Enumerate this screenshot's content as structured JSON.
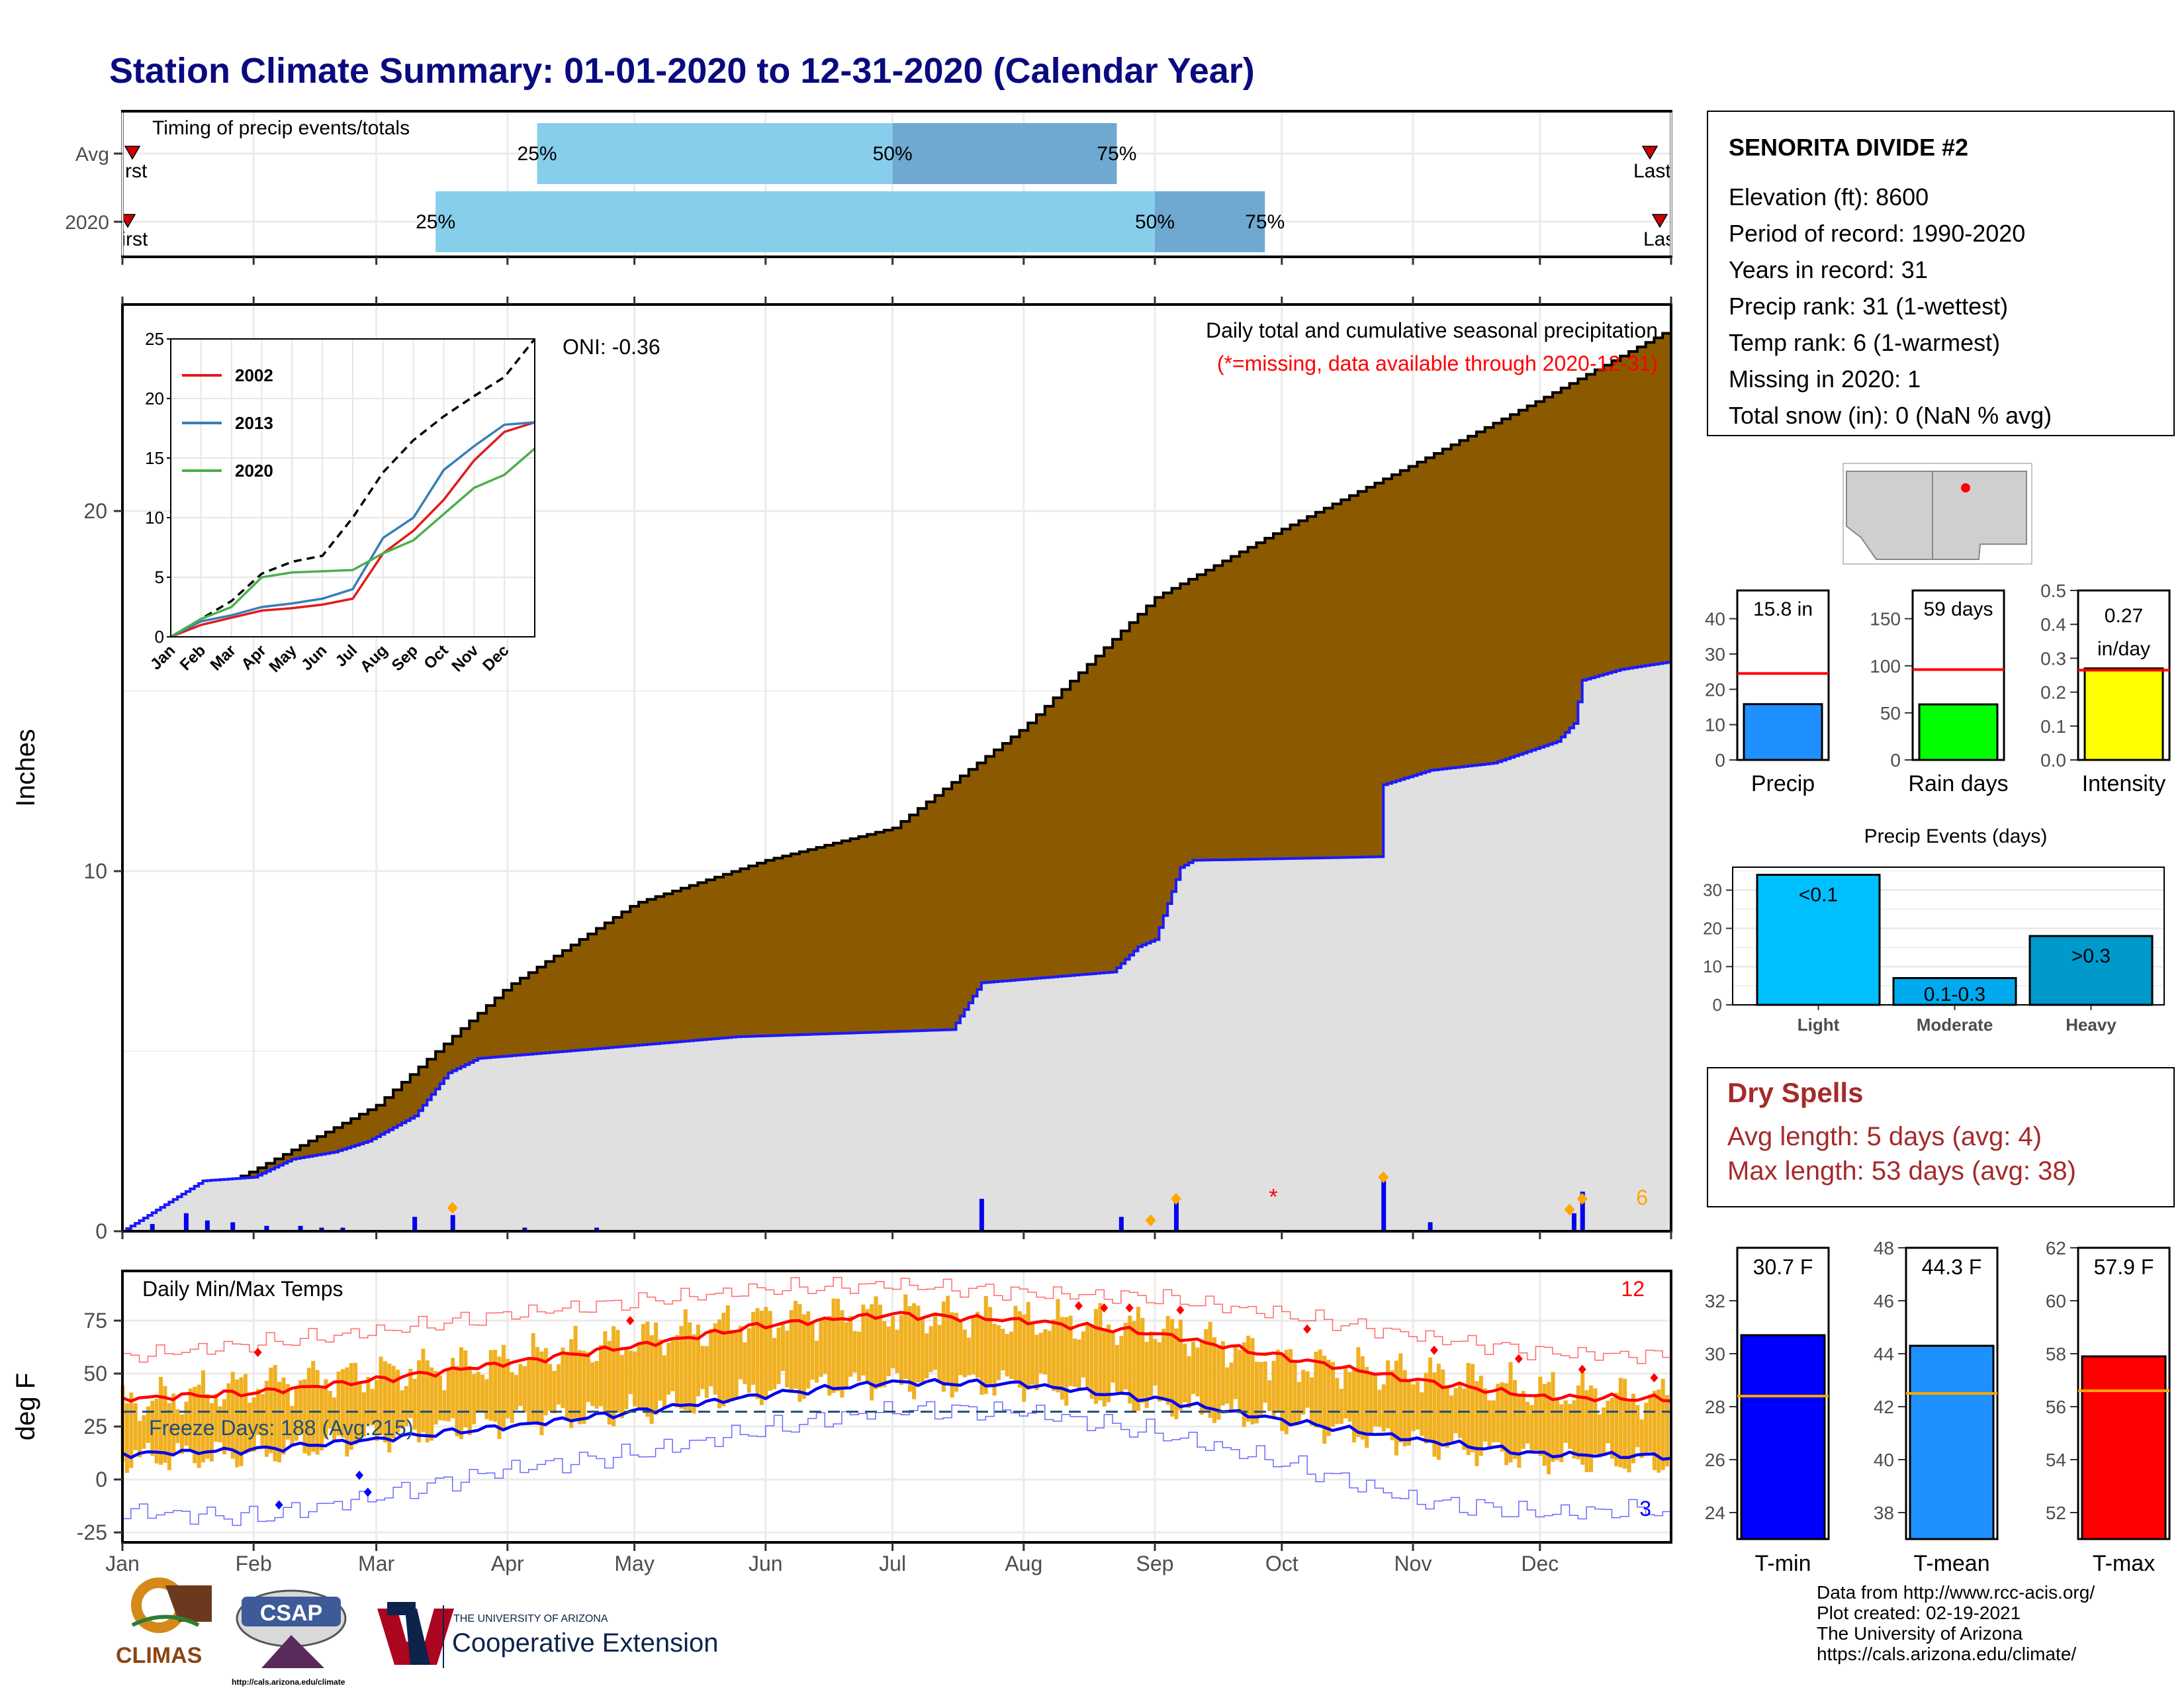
{
  "title": "Station Climate Summary: 01-01-2020 to 12-31-2020 (Calendar Year)",
  "colors": {
    "title": "#0a0a80",
    "light_blue": "#87ceeb",
    "mid_blue": "#6fa8d0",
    "brown": "#8b5a00",
    "grey_fill": "#e0e0e0",
    "blue_line": "#1a1aff",
    "orange": "#ffa500",
    "red": "#ff0000",
    "gold": "#f0b020",
    "dark_red": "#a52a2a"
  },
  "station": {
    "name": "SENORITA DIVIDE #2",
    "lines": [
      "Elevation (ft): 8600",
      "Period of record: 1990-2020",
      "Years in record: 31",
      "Precip rank: 31 (1-wettest)",
      "Temp rank: 6 (1-warmest)",
      "Missing in 2020: 1",
      "Total snow (in): 0 (NaN % avg)"
    ]
  },
  "timing": {
    "label": "Timing of precip events/totals",
    "rows": [
      {
        "name": "Avg",
        "q25": "Apr 8",
        "q50": "Jul 1",
        "q75": "Aug 23",
        "first": "first",
        "last": "Last"
      },
      {
        "name": "2020",
        "q25": "Mar 15",
        "q50": "Sep 1",
        "q75": "Sep 27",
        "first": "first",
        "last": "Last"
      }
    ],
    "pct_labels": [
      "25%",
      "50%",
      "75%"
    ]
  },
  "precip_panel": {
    "ylabel": "Inches",
    "yticks": [
      0,
      10,
      20
    ],
    "oni": "ONI: -0.36",
    "title": "Daily total and cumulative seasonal precipitation",
    "note": "(*=missing, data available through 2020-12-31)",
    "corner_count": "6",
    "normal_cumulative": [
      {
        "day": "2020-01-01",
        "v": 0
      },
      {
        "day": "2020-02-01",
        "v": 1.7
      },
      {
        "day": "2020-03-01",
        "v": 3.5
      },
      {
        "day": "2020-04-01",
        "v": 6.8
      },
      {
        "day": "2020-05-01",
        "v": 9.1
      },
      {
        "day": "2020-06-01",
        "v": 10.3
      },
      {
        "day": "2020-07-01",
        "v": 11.2
      },
      {
        "day": "2020-08-01",
        "v": 14.0
      },
      {
        "day": "2020-09-01",
        "v": 17.6
      },
      {
        "day": "2020-10-01",
        "v": 19.5
      },
      {
        "day": "2020-11-01",
        "v": 21.3
      },
      {
        "day": "2020-12-01",
        "v": 23.1
      },
      {
        "day": "2020-12-31",
        "v": 25.0
      }
    ],
    "cumulative_2020": [
      {
        "day": "2020-01-01",
        "v": 0
      },
      {
        "day": "2020-01-20",
        "v": 1.4
      },
      {
        "day": "2020-02-01",
        "v": 1.5
      },
      {
        "day": "2020-02-10",
        "v": 2.0
      },
      {
        "day": "2020-02-20",
        "v": 2.2
      },
      {
        "day": "2020-02-28",
        "v": 2.5
      },
      {
        "day": "2020-03-10",
        "v": 3.2
      },
      {
        "day": "2020-03-18",
        "v": 4.4
      },
      {
        "day": "2020-03-25",
        "v": 4.8
      },
      {
        "day": "2020-04-25",
        "v": 5.1
      },
      {
        "day": "2020-05-25",
        "v": 5.4
      },
      {
        "day": "2020-07-15",
        "v": 5.6
      },
      {
        "day": "2020-07-22",
        "v": 6.9
      },
      {
        "day": "2020-08-22",
        "v": 7.2
      },
      {
        "day": "2020-08-28",
        "v": 7.9
      },
      {
        "day": "2020-09-01",
        "v": 8.1
      },
      {
        "day": "2020-09-07",
        "v": 10.1
      },
      {
        "day": "2020-09-10",
        "v": 10.3
      },
      {
        "day": "2020-10-24",
        "v": 10.4
      },
      {
        "day": "2020-10-25",
        "v": 12.4
      },
      {
        "day": "2020-11-05",
        "v": 12.8
      },
      {
        "day": "2020-11-20",
        "v": 13.0
      },
      {
        "day": "2020-12-05",
        "v": 13.6
      },
      {
        "day": "2020-12-09",
        "v": 14.1
      },
      {
        "day": "2020-12-11",
        "v": 15.3
      },
      {
        "day": "2020-12-20",
        "v": 15.6
      },
      {
        "day": "2020-12-31",
        "v": 15.8
      }
    ],
    "daily_bars": [
      {
        "day": "2020-01-08",
        "v": 0.2
      },
      {
        "day": "2020-01-16",
        "v": 0.5
      },
      {
        "day": "2020-01-21",
        "v": 0.3
      },
      {
        "day": "2020-01-27",
        "v": 0.25
      },
      {
        "day": "2020-02-04",
        "v": 0.15
      },
      {
        "day": "2020-02-12",
        "v": 0.15
      },
      {
        "day": "2020-02-17",
        "v": 0.1
      },
      {
        "day": "2020-02-22",
        "v": 0.1
      },
      {
        "day": "2020-03-10",
        "v": 0.4
      },
      {
        "day": "2020-03-19",
        "v": 0.45
      },
      {
        "day": "2020-04-05",
        "v": 0.1
      },
      {
        "day": "2020-04-22",
        "v": 0.1
      },
      {
        "day": "2020-07-22",
        "v": 0.9
      },
      {
        "day": "2020-08-24",
        "v": 0.4
      },
      {
        "day": "2020-09-06",
        "v": 0.9
      },
      {
        "day": "2020-10-25",
        "v": 1.4
      },
      {
        "day": "2020-11-05",
        "v": 0.25
      },
      {
        "day": "2020-12-09",
        "v": 0.5
      },
      {
        "day": "2020-12-11",
        "v": 1.1
      }
    ],
    "orange_markers": [
      {
        "day": "2020-03-19",
        "v": 0.65
      },
      {
        "day": "2020-08-31",
        "v": 0.3
      },
      {
        "day": "2020-09-06",
        "v": 0.9
      },
      {
        "day": "2020-10-25",
        "v": 1.5
      },
      {
        "day": "2020-12-08",
        "v": 0.6
      },
      {
        "day": "2020-12-11",
        "v": 0.9
      }
    ],
    "missing_markers": [
      {
        "day": "2020-09-29",
        "v": 1.0
      }
    ],
    "missing_symbol": "*"
  },
  "inset": {
    "yticks": [
      0,
      5,
      10,
      15,
      20,
      25
    ],
    "xticks": [
      "Jan",
      "Feb",
      "Mar",
      "Apr",
      "May",
      "Jun",
      "Jul",
      "Aug",
      "Sep",
      "Oct",
      "Nov",
      "Dec"
    ],
    "legend": [
      {
        "name": "2002",
        "color": "#e41a1c"
      },
      {
        "name": "2013",
        "color": "#377eb8"
      },
      {
        "name": "2020",
        "color": "#4daf4a"
      }
    ],
    "series": {
      "normal": [
        0,
        1.5,
        3.0,
        5.3,
        6.3,
        6.8,
        10.0,
        13.8,
        16.5,
        18.5,
        20.2,
        21.8,
        25.0
      ],
      "y2002": [
        0,
        1.0,
        1.6,
        2.2,
        2.4,
        2.7,
        3.2,
        7.0,
        8.9,
        11.5,
        14.8,
        17.2,
        18.0
      ],
      "y2013": [
        0,
        1.3,
        1.8,
        2.5,
        2.8,
        3.2,
        4.0,
        8.3,
        10.0,
        14.0,
        16.0,
        17.8,
        18.0
      ],
      "y2020": [
        0,
        1.5,
        2.5,
        5.0,
        5.4,
        5.5,
        5.6,
        7.0,
        8.1,
        10.3,
        12.5,
        13.6,
        15.8
      ]
    }
  },
  "temp_panel": {
    "ylabel": "deg F",
    "yticks": [
      -25,
      0,
      25,
      50,
      75
    ],
    "title": "Daily Min/Max Temps",
    "freeze": "Freeze Days: 188 (Avg:215)",
    "count_high": "12",
    "count_low": "3",
    "freeze_line": 32,
    "months": [
      "Jan",
      "Feb",
      "Mar",
      "Apr",
      "May",
      "Jun",
      "Jul",
      "Aug",
      "Sep",
      "Oct",
      "Nov",
      "Dec"
    ],
    "avg_max_monthly": [
      38,
      41,
      47,
      55,
      63,
      73,
      78,
      75,
      69,
      58,
      47,
      39,
      38
    ],
    "avg_min_monthly": [
      12,
      14,
      19,
      25,
      32,
      40,
      46,
      45,
      38,
      28,
      19,
      12,
      11
    ],
    "rec_max_monthly": [
      58,
      64,
      70,
      78,
      84,
      90,
      92,
      88,
      86,
      78,
      68,
      60,
      58
    ],
    "rec_min_monthly": [
      -15,
      -18,
      -8,
      5,
      12,
      24,
      33,
      32,
      22,
      8,
      -10,
      -16,
      -14
    ],
    "obs_max_monthly": [
      35,
      45,
      50,
      56,
      66,
      76,
      79,
      75,
      72,
      56,
      50,
      42,
      38
    ],
    "obs_min_monthly": [
      10,
      12,
      20,
      28,
      32,
      42,
      46,
      45,
      36,
      28,
      18,
      10,
      8
    ]
  },
  "bars": {
    "precip": {
      "label": "Precip",
      "value_text": "15.8 in",
      "value": 15.8,
      "avg": 24.5,
      "yticks": [
        0,
        10,
        20,
        30,
        40
      ],
      "ymax": 48,
      "color": "#1e90ff"
    },
    "raindays": {
      "label": "Rain days",
      "value_text": "59 days",
      "value": 59,
      "avg": 96,
      "yticks": [
        0,
        50,
        100,
        150
      ],
      "ymax": 180,
      "color": "#00ff00"
    },
    "intensity": {
      "label": "Intensity",
      "value_text1": "0.27",
      "value_text2": "in/day",
      "value": 0.27,
      "avg": 0.265,
      "yticks": [
        "0.0",
        "0.1",
        "0.2",
        "0.3",
        "0.4",
        "0.5"
      ],
      "ymax": 0.5,
      "color": "#ffff00"
    }
  },
  "events": {
    "title": "Precip Events (days)",
    "yticks": [
      0,
      10,
      20,
      30
    ],
    "ymax": 36,
    "items": [
      {
        "cat": "Light",
        "label": "<0.1",
        "value": 34,
        "color": "#00bfff"
      },
      {
        "cat": "Moderate",
        "label": "0.1-0.3",
        "value": 7,
        "color": "#00aaee"
      },
      {
        "cat": "Heavy",
        "label": ">0.3",
        "value": 18,
        "color": "#0099cc"
      }
    ]
  },
  "dry": {
    "title": "Dry Spells",
    "avg_line": "Avg length: 5 days (avg: 4)",
    "max_line": "Max length: 53 days (avg: 38)"
  },
  "temp_bars": [
    {
      "label": "T-min",
      "value_text": "30.7 F",
      "value": 30.7,
      "avg": 28.4,
      "ymin": 23,
      "ymax": 34,
      "yticks": [
        24,
        26,
        28,
        30,
        32
      ],
      "color": "#0000ff"
    },
    {
      "label": "T-mean",
      "value_text": "44.3 F",
      "value": 44.3,
      "avg": 42.5,
      "ymin": 37,
      "ymax": 48,
      "yticks": [
        38,
        40,
        42,
        44,
        46,
        48
      ],
      "color": "#1e90ff"
    },
    {
      "label": "T-max",
      "value_text": "57.9 F",
      "value": 57.9,
      "avg": 56.6,
      "ymin": 51,
      "ymax": 62,
      "yticks": [
        52,
        54,
        56,
        58,
        60,
        62
      ],
      "color": "#ff0000"
    }
  ],
  "logos": {
    "climas": "CLIMAS",
    "csap": "CSAP",
    "csap_url": "http://cals.arizona.edu/climate",
    "ua_small": "THE UNIVERSITY OF ARIZONA",
    "ua_big": "Cooperative Extension"
  },
  "credits": [
    "Data from http://www.rcc-acis.org/",
    "Plot created: 02-19-2021",
    "The University of Arizona",
    "https://cals.arizona.edu/climate/"
  ]
}
